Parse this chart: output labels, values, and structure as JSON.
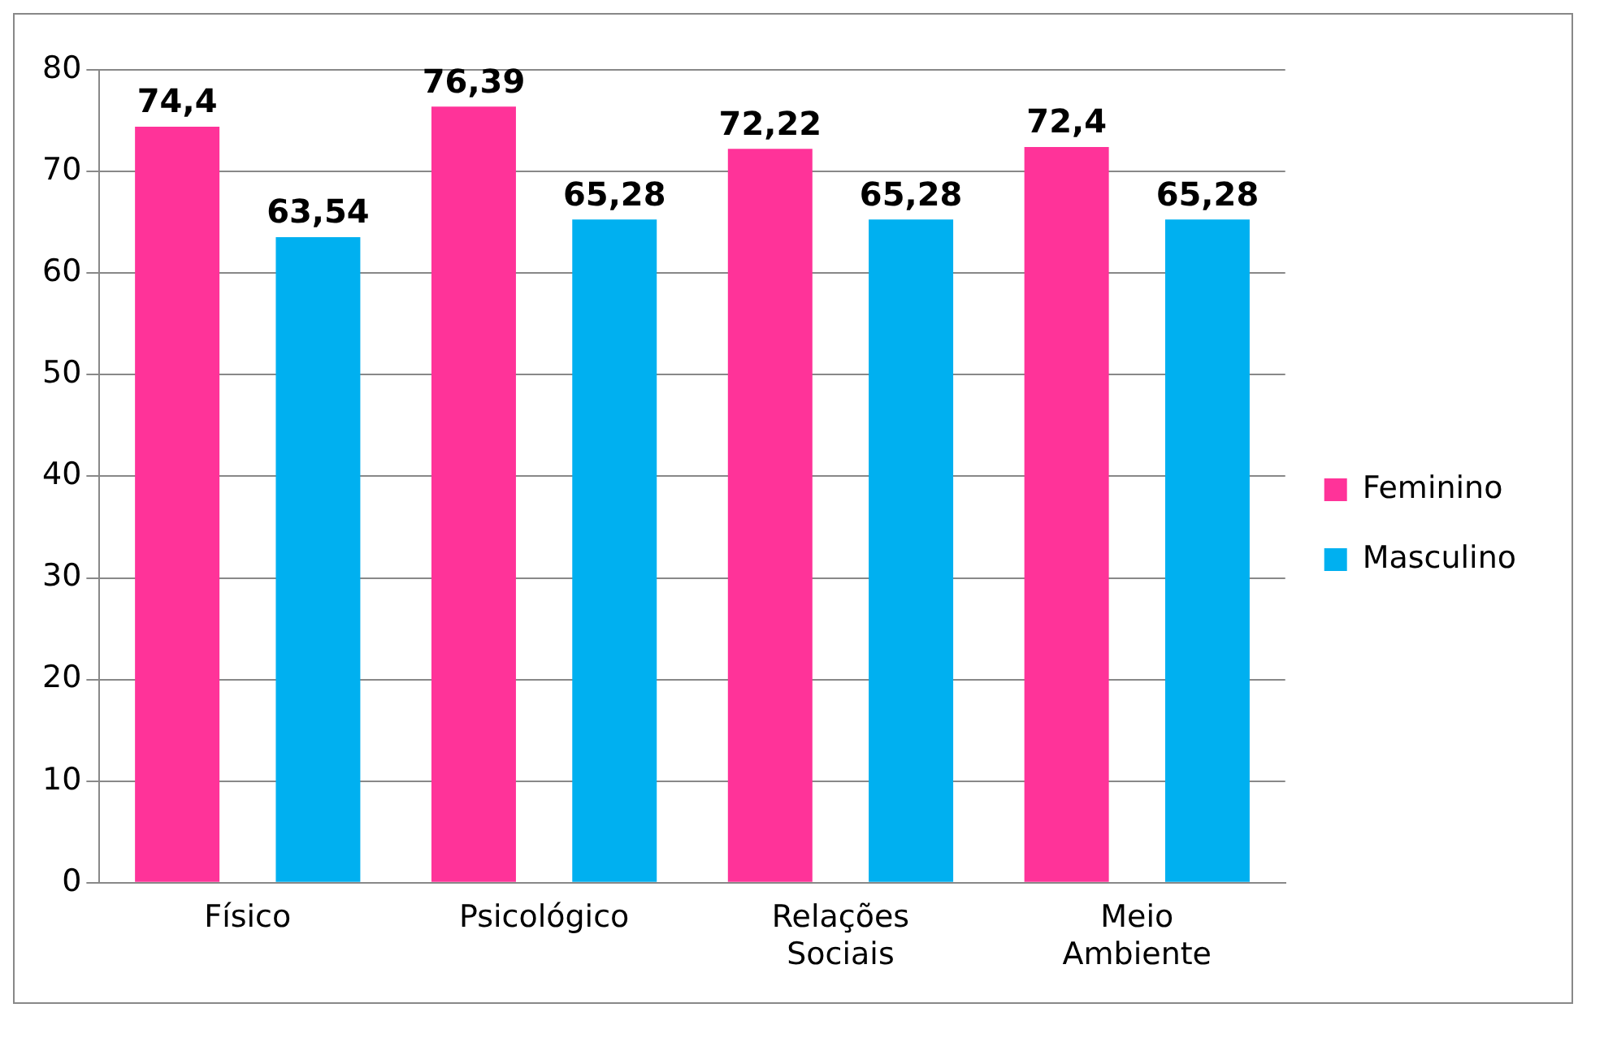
{
  "chart_data": {
    "type": "bar",
    "categories": [
      "Físico",
      "Psicológico",
      "Relações Sociais",
      "Meio Ambiente"
    ],
    "series": [
      {
        "name": "Feminino",
        "color": "#ff3399",
        "values": [
          74.4,
          76.39,
          72.22,
          72.4
        ],
        "value_labels": [
          "74,4",
          "76,39",
          "72,22",
          "72,4"
        ]
      },
      {
        "name": "Masculino",
        "color": "#00b0f0",
        "values": [
          63.54,
          65.28,
          65.28,
          65.28
        ],
        "value_labels": [
          "63,54",
          "65,28",
          "65,28",
          "65,28"
        ]
      }
    ],
    "ylim": [
      0,
      80
    ],
    "yticks": [
      0,
      10,
      20,
      30,
      40,
      50,
      60,
      70,
      80
    ],
    "grid": "y",
    "legend": "right"
  }
}
